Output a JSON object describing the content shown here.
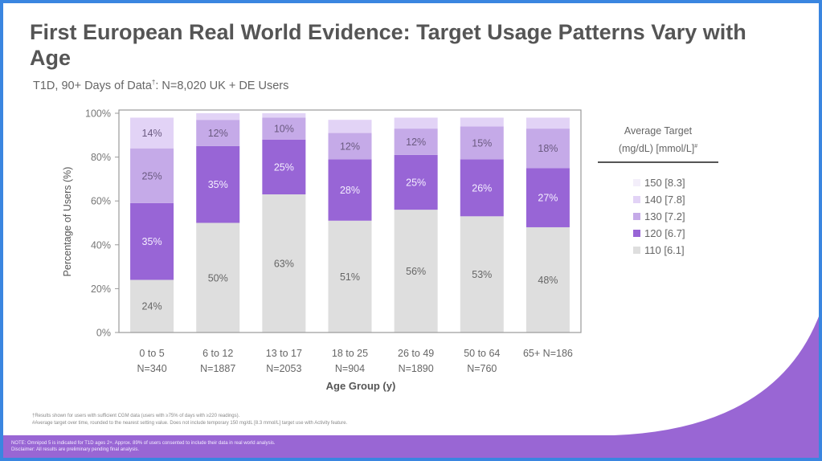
{
  "slide": {
    "title": "First European Real World Evidence: Target Usage Patterns Vary with Age",
    "subtitle": "T1D, 90+ Days of Data",
    "subtitle_mark": "†",
    "subtitle_rest": ": N=8,020 UK + DE Users",
    "footnotes": [
      "†Results shown for users with sufficient CGM data (users with ≥75% of days with ≥220 readings).",
      "#Average target over time, rounded to the nearest setting value. Does not include temporary 150 mg/dL [8.3 mmol/L] target use with Activity feature."
    ],
    "note_lines": [
      "NOTE: Omnipod 5 is indicated for T1D ages 2+. Approx. 89% of users consented to include their data in real world analysis.",
      "Disclaimer: All results are preliminary pending final analysis."
    ]
  },
  "legend": {
    "title_line1": "Average Target",
    "title_line2": "(mg/dL) [mmol/L]",
    "title_mark": "#",
    "items": [
      {
        "label": "150 [8.3]",
        "color": "#f3eefa"
      },
      {
        "label": "140 [7.8]",
        "color": "#e2d3f6"
      },
      {
        "label": "130 [7.2]",
        "color": "#c5aae8"
      },
      {
        "label": "120 [6.7]",
        "color": "#9865d6"
      },
      {
        "label": "110 [6.1]",
        "color": "#dedede"
      }
    ]
  },
  "chart_data": {
    "type": "bar",
    "stacked": true,
    "title": "",
    "xlabel": "Age Group (y)",
    "ylabel": "Percentage of Users (%)",
    "ylim": [
      0,
      100
    ],
    "yticks": [
      "0%",
      "20%",
      "40%",
      "60%",
      "80%",
      "100%"
    ],
    "categories": [
      {
        "line1": "0 to 5",
        "line2": "N=340"
      },
      {
        "line1": "6 to 12",
        "line2": "N=1887"
      },
      {
        "line1": "13 to 17",
        "line2": "N=2053"
      },
      {
        "line1": "18 to 25",
        "line2": "N=904"
      },
      {
        "line1": "26 to 49",
        "line2": "N=1890"
      },
      {
        "line1": "50 to 64",
        "line2": "N=760"
      },
      {
        "line1": "65+ N=186",
        "line2": ""
      }
    ],
    "series": [
      {
        "name": "110 [6.1]",
        "color": "#dedede",
        "label_color": "#666666",
        "values": [
          24,
          50,
          63,
          51,
          56,
          53,
          48
        ],
        "labels": [
          "24%",
          "50%",
          "63%",
          "51%",
          "56%",
          "53%",
          "48%"
        ]
      },
      {
        "name": "120 [6.7]",
        "color": "#9865d6",
        "label_color": "#f4eeff",
        "values": [
          35,
          35,
          25,
          28,
          25,
          26,
          27
        ],
        "labels": [
          "35%",
          "35%",
          "25%",
          "28%",
          "25%",
          "26%",
          "27%"
        ]
      },
      {
        "name": "130 [7.2]",
        "color": "#c5aae8",
        "label_color": "#6a5a80",
        "values": [
          25,
          12,
          10,
          12,
          12,
          15,
          18
        ],
        "labels": [
          "25%",
          "12%",
          "10%",
          "12%",
          "12%",
          "15%",
          "18%"
        ]
      },
      {
        "name": "140 [7.8]",
        "color": "#e2d3f6",
        "label_color": "#6a5a80",
        "values": [
          14,
          3,
          2,
          6,
          5,
          4,
          5
        ],
        "labels": [
          "14%",
          "",
          "",
          "",
          "",
          "",
          ""
        ]
      },
      {
        "name": "150 [8.3]",
        "color": "#f3eefa",
        "label_color": "#6a5a80",
        "values": [
          0,
          0,
          0,
          0,
          0,
          0,
          0
        ],
        "labels": [
          "",
          "",
          "",
          "",
          "",
          "",
          ""
        ]
      }
    ],
    "grid": false,
    "legend_position": "right"
  }
}
